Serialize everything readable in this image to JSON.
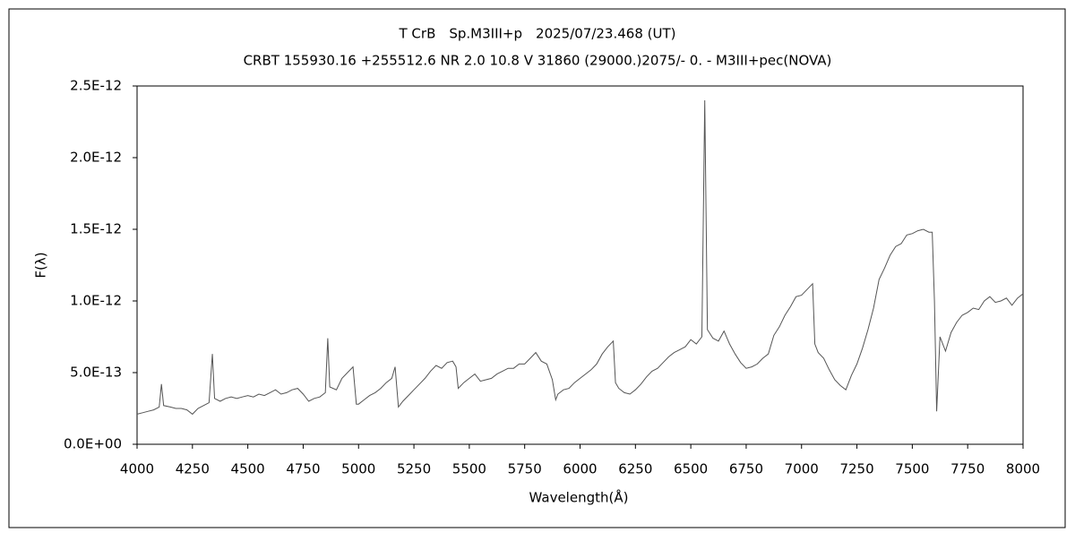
{
  "chart_data": {
    "type": "line",
    "title": "T CrB　Sp.M3III+p　2025/07/23.468 (UT)",
    "subtitle": "CRBT 155930.16 +255512.6 NR 2.0 10.8 V 31860 (29000.)2075/-  0. - M3III+pec(NOVA)",
    "xlabel": "Wavelength(Å)",
    "ylabel": "F(λ)",
    "color": "#555555",
    "x": [
      4000,
      4025,
      4050,
      4075,
      4100,
      4110,
      4120,
      4150,
      4175,
      4200,
      4225,
      4250,
      4275,
      4300,
      4325,
      4340,
      4350,
      4375,
      4400,
      4425,
      4450,
      4475,
      4500,
      4525,
      4550,
      4575,
      4600,
      4625,
      4650,
      4675,
      4700,
      4725,
      4750,
      4775,
      4800,
      4825,
      4850,
      4861,
      4870,
      4900,
      4925,
      4950,
      4975,
      4990,
      5000,
      5025,
      5050,
      5075,
      5100,
      5125,
      5150,
      5165,
      5180,
      5200,
      5225,
      5250,
      5275,
      5300,
      5325,
      5350,
      5375,
      5400,
      5425,
      5440,
      5450,
      5475,
      5500,
      5525,
      5550,
      5575,
      5600,
      5625,
      5650,
      5675,
      5700,
      5725,
      5750,
      5775,
      5800,
      5825,
      5850,
      5875,
      5890,
      5900,
      5925,
      5950,
      5975,
      6000,
      6025,
      6050,
      6075,
      6100,
      6125,
      6150,
      6160,
      6175,
      6200,
      6225,
      6250,
      6275,
      6300,
      6325,
      6350,
      6375,
      6400,
      6425,
      6450,
      6475,
      6500,
      6525,
      6550,
      6563,
      6575,
      6600,
      6625,
      6650,
      6675,
      6700,
      6725,
      6750,
      6775,
      6800,
      6825,
      6850,
      6875,
      6900,
      6925,
      6950,
      6975,
      7000,
      7025,
      7050,
      7060,
      7075,
      7100,
      7125,
      7150,
      7175,
      7200,
      7225,
      7250,
      7275,
      7300,
      7325,
      7350,
      7375,
      7400,
      7425,
      7450,
      7475,
      7500,
      7525,
      7550,
      7575,
      7590,
      7600,
      7610,
      7625,
      7650,
      7675,
      7700,
      7725,
      7750,
      7775,
      7800,
      7825,
      7850,
      7875,
      7900,
      7925,
      7950,
      7975,
      8000
    ],
    "values": [
      2.1e-13,
      2.2e-13,
      2.3e-13,
      2.4e-13,
      2.6e-13,
      4.2e-13,
      2.7e-13,
      2.6e-13,
      2.5e-13,
      2.5e-13,
      2.4e-13,
      2.1e-13,
      2.5e-13,
      2.7e-13,
      2.9e-13,
      6.3e-13,
      3.2e-13,
      3e-13,
      3.2e-13,
      3.3e-13,
      3.2e-13,
      3.3e-13,
      3.4e-13,
      3.3e-13,
      3.5e-13,
      3.4e-13,
      3.6e-13,
      3.8e-13,
      3.5e-13,
      3.6e-13,
      3.8e-13,
      3.9e-13,
      3.5e-13,
      3e-13,
      3.2e-13,
      3.3e-13,
      3.6e-13,
      7.4e-13,
      4e-13,
      3.8e-13,
      4.6e-13,
      5e-13,
      5.4e-13,
      2.8e-13,
      2.8e-13,
      3.1e-13,
      3.4e-13,
      3.6e-13,
      3.9e-13,
      4.3e-13,
      4.6e-13,
      5.4e-13,
      2.6e-13,
      3e-13,
      3.4e-13,
      3.8e-13,
      4.2e-13,
      4.6e-13,
      5.1e-13,
      5.5e-13,
      5.3e-13,
      5.7e-13,
      5.8e-13,
      5.4e-13,
      3.9e-13,
      4.3e-13,
      4.6e-13,
      4.9e-13,
      4.4e-13,
      4.5e-13,
      4.6e-13,
      4.9e-13,
      5.1e-13,
      5.3e-13,
      5.3e-13,
      5.6e-13,
      5.6e-13,
      6e-13,
      6.4e-13,
      5.8e-13,
      5.6e-13,
      4.5e-13,
      3.1e-13,
      3.5e-13,
      3.8e-13,
      3.9e-13,
      4.3e-13,
      4.6e-13,
      4.9e-13,
      5.2e-13,
      5.6e-13,
      6.3e-13,
      6.8e-13,
      7.2e-13,
      4.3e-13,
      3.9e-13,
      3.6e-13,
      3.5e-13,
      3.8e-13,
      4.2e-13,
      4.7e-13,
      5.1e-13,
      5.3e-13,
      5.7e-13,
      6.1e-13,
      6.4e-13,
      6.6e-13,
      6.8e-13,
      7.3e-13,
      7e-13,
      7.5e-13,
      2.4e-12,
      8e-13,
      7.4e-13,
      7.2e-13,
      7.9e-13,
      7e-13,
      6.3e-13,
      5.7e-13,
      5.3e-13,
      5.4e-13,
      5.6e-13,
      6e-13,
      6.3e-13,
      7.6e-13,
      8.2e-13,
      9e-13,
      9.6e-13,
      1.03e-12,
      1.04e-12,
      1.08e-12,
      1.12e-12,
      7e-13,
      6.4e-13,
      6e-13,
      5.2e-13,
      4.5e-13,
      4.1e-13,
      3.8e-13,
      4.8e-13,
      5.6e-13,
      6.7e-13,
      8e-13,
      9.5e-13,
      1.15e-12,
      1.23e-12,
      1.32e-12,
      1.38e-12,
      1.4e-12,
      1.46e-12,
      1.47e-12,
      1.49e-12,
      1.5e-12,
      1.48e-12,
      1.48e-12,
      1e-12,
      2.3e-13,
      7.5e-13,
      6.5e-13,
      7.8e-13,
      8.5e-13,
      9e-13,
      9.2e-13,
      9.5e-13,
      9.4e-13,
      1e-12,
      1.03e-12,
      9.9e-13,
      1e-12,
      1.02e-12,
      9.7e-13,
      1.02e-12,
      1.05e-12
    ],
    "xlim": [
      4000,
      8000
    ],
    "xticks": [
      4000,
      4250,
      4500,
      4750,
      5000,
      5250,
      5500,
      5750,
      6000,
      6250,
      6500,
      6750,
      7000,
      7250,
      7500,
      7750,
      8000
    ],
    "ylim": [
      0,
      2.5e-12
    ],
    "yticks": [
      {
        "value": 0,
        "label": "0.0E+00"
      },
      {
        "value": 5e-13,
        "label": "5.0E-13"
      },
      {
        "value": 1e-12,
        "label": "1.0E-12"
      },
      {
        "value": 1.5e-12,
        "label": "1.5E-12"
      },
      {
        "value": 2e-12,
        "label": "2.0E-12"
      },
      {
        "value": 2.5e-12,
        "label": "2.5E-12"
      }
    ]
  }
}
